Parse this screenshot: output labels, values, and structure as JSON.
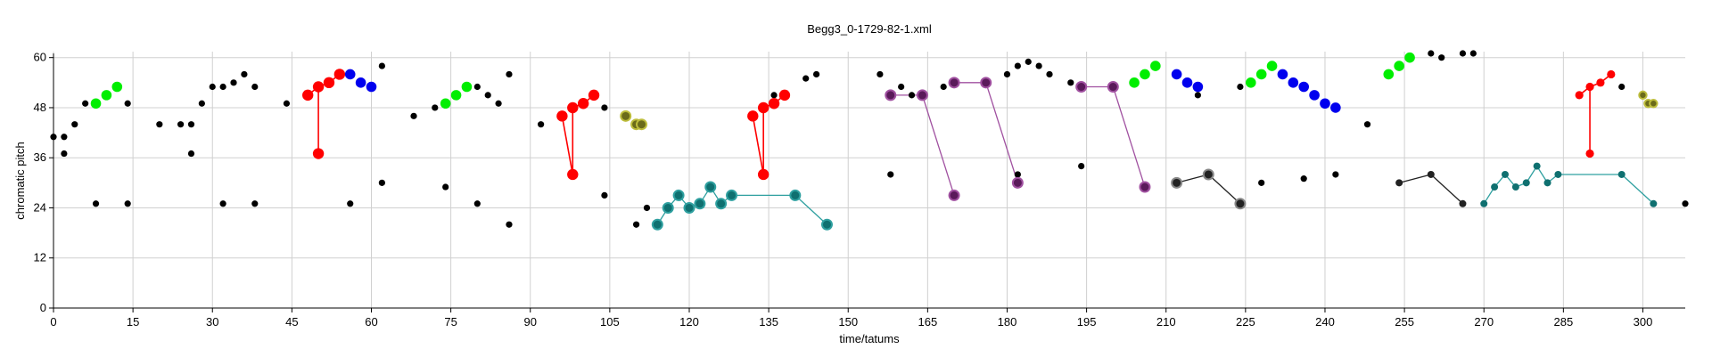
{
  "chart_data": {
    "type": "scatter",
    "title": "Begg3_0-1729-82-1.xml",
    "xlabel": "time/tatums",
    "ylabel": "chromatic pitch",
    "xlim": [
      0,
      308
    ],
    "ylim": [
      0,
      61
    ],
    "xticks": [
      0,
      15,
      30,
      45,
      60,
      75,
      90,
      105,
      120,
      135,
      150,
      165,
      180,
      195,
      210,
      225,
      240,
      255,
      270,
      285,
      300
    ],
    "yticks": [
      0,
      12,
      24,
      36,
      48,
      60
    ],
    "grid": true,
    "colors": {
      "black": "#000000",
      "green": "#00ee00",
      "red": "#ff0000",
      "blue": "#0000ee",
      "olive": "#6b6b1a",
      "olive_ring": "#bdbd3c",
      "teal": "#0f7070",
      "teal_line": "#2fa0a0",
      "purple": "#5a1a5a",
      "purple_line": "#a050a0",
      "dark": "#222222",
      "dark_ring": "#888888",
      "grid": "#d0d0d0"
    },
    "points": [
      [
        0,
        41
      ],
      [
        2,
        41
      ],
      [
        2,
        37
      ],
      [
        4,
        44
      ],
      [
        6,
        49
      ],
      [
        8,
        25
      ],
      [
        14,
        49
      ],
      [
        14,
        25
      ],
      [
        20,
        44
      ],
      [
        24,
        44
      ],
      [
        26,
        44
      ],
      [
        26,
        37
      ],
      [
        28,
        49
      ],
      [
        30,
        53
      ],
      [
        32,
        53
      ],
      [
        32,
        25
      ],
      [
        34,
        54
      ],
      [
        36,
        56
      ],
      [
        38,
        53
      ],
      [
        38,
        25
      ],
      [
        44,
        49
      ],
      [
        56,
        25
      ],
      [
        62,
        58
      ],
      [
        62,
        30
      ],
      [
        68,
        46
      ],
      [
        72,
        48
      ],
      [
        74,
        29
      ],
      [
        80,
        53
      ],
      [
        80,
        25
      ],
      [
        82,
        51
      ],
      [
        84,
        49
      ],
      [
        86,
        56
      ],
      [
        86,
        20
      ],
      [
        92,
        44
      ],
      [
        104,
        48
      ],
      [
        104,
        27
      ],
      [
        110,
        20
      ],
      [
        112,
        24
      ],
      [
        136,
        51
      ],
      [
        142,
        55
      ],
      [
        144,
        56
      ],
      [
        156,
        56
      ],
      [
        158,
        32
      ],
      [
        160,
        53
      ],
      [
        162,
        51
      ],
      [
        168,
        53
      ],
      [
        182,
        32
      ],
      [
        180,
        56
      ],
      [
        182,
        58
      ],
      [
        184,
        59
      ],
      [
        186,
        58
      ],
      [
        188,
        56
      ],
      [
        192,
        54
      ],
      [
        194,
        34
      ],
      [
        212,
        56
      ],
      [
        216,
        51
      ],
      [
        224,
        53
      ],
      [
        228,
        30
      ],
      [
        236,
        31
      ],
      [
        242,
        32
      ],
      [
        248,
        44
      ],
      [
        254,
        30
      ],
      [
        260,
        61
      ],
      [
        262,
        60
      ],
      [
        266,
        61
      ],
      [
        268,
        61
      ],
      [
        272,
        29
      ],
      [
        296,
        53
      ],
      [
        308,
        25
      ]
    ],
    "series": [
      {
        "color": "green",
        "points": [
          [
            8,
            49
          ],
          [
            10,
            51
          ],
          [
            12,
            53
          ]
        ]
      },
      {
        "color": "red",
        "points": [
          [
            48,
            51
          ],
          [
            50,
            53
          ],
          [
            50,
            37
          ],
          [
            52,
            54
          ],
          [
            54,
            56
          ]
        ],
        "edges": [
          [
            0,
            1
          ],
          [
            1,
            2
          ],
          [
            1,
            3
          ],
          [
            3,
            4
          ]
        ]
      },
      {
        "color": "blue",
        "points": [
          [
            56,
            56
          ],
          [
            58,
            54
          ],
          [
            60,
            53
          ]
        ]
      },
      {
        "color": "green",
        "points": [
          [
            74,
            49
          ],
          [
            76,
            51
          ],
          [
            78,
            53
          ]
        ]
      },
      {
        "color": "red",
        "points": [
          [
            96,
            46
          ],
          [
            98,
            32
          ],
          [
            98,
            48
          ],
          [
            100,
            49
          ],
          [
            102,
            51
          ]
        ],
        "edges": [
          [
            0,
            1
          ],
          [
            1,
            2
          ],
          [
            2,
            3
          ],
          [
            3,
            4
          ]
        ]
      },
      {
        "color": "olive",
        "points": [
          [
            108,
            46
          ],
          [
            110,
            44
          ],
          [
            111,
            44
          ]
        ]
      },
      {
        "color": "teal",
        "points": [
          [
            114,
            20
          ],
          [
            116,
            24
          ],
          [
            118,
            27
          ],
          [
            120,
            24
          ],
          [
            122,
            25
          ],
          [
            124,
            29
          ],
          [
            126,
            25
          ],
          [
            128,
            27
          ],
          [
            140,
            27
          ],
          [
            146,
            20
          ]
        ],
        "line": true
      },
      {
        "color": "red",
        "points": [
          [
            132,
            46
          ],
          [
            134,
            32
          ],
          [
            134,
            48
          ],
          [
            136,
            49
          ],
          [
            138,
            51
          ]
        ],
        "edges": [
          [
            0,
            1
          ],
          [
            1,
            2
          ],
          [
            2,
            3
          ],
          [
            3,
            4
          ]
        ]
      },
      {
        "color": "purple",
        "points": [
          [
            158,
            51
          ],
          [
            164,
            51
          ],
          [
            170,
            27
          ]
        ],
        "line": true,
        "big": true
      },
      {
        "color": "purple",
        "points": [
          [
            170,
            54
          ],
          [
            176,
            54
          ],
          [
            182,
            30
          ]
        ],
        "line": true
      },
      {
        "color": "purple",
        "points": [
          [
            194,
            53
          ],
          [
            200,
            53
          ],
          [
            206,
            29
          ]
        ],
        "line": true
      },
      {
        "color": "green",
        "points": [
          [
            204,
            54
          ],
          [
            206,
            56
          ],
          [
            208,
            58
          ]
        ]
      },
      {
        "color": "blue",
        "points": [
          [
            212,
            56
          ],
          [
            214,
            54
          ],
          [
            216,
            53
          ]
        ]
      },
      {
        "color": "dark",
        "points": [
          [
            212,
            30
          ],
          [
            218,
            32
          ],
          [
            224,
            25
          ]
        ],
        "line": true
      },
      {
        "color": "green",
        "points": [
          [
            226,
            54
          ],
          [
            228,
            56
          ],
          [
            230,
            58
          ]
        ]
      },
      {
        "color": "blue",
        "points": [
          [
            232,
            56
          ],
          [
            234,
            54
          ],
          [
            236,
            53
          ],
          [
            238,
            51
          ],
          [
            240,
            49
          ],
          [
            242,
            48
          ]
        ]
      },
      {
        "color": "green",
        "points": [
          [
            252,
            56
          ],
          [
            254,
            58
          ],
          [
            256,
            60
          ]
        ]
      },
      {
        "color": "dark",
        "points": [
          [
            254,
            30
          ],
          [
            260,
            32
          ],
          [
            266,
            25
          ]
        ],
        "line": true,
        "plain": true
      },
      {
        "color": "teal",
        "points": [
          [
            270,
            25
          ],
          [
            272,
            29
          ],
          [
            274,
            32
          ],
          [
            276,
            29
          ],
          [
            278,
            30
          ],
          [
            280,
            34
          ],
          [
            282,
            30
          ],
          [
            284,
            32
          ],
          [
            296,
            32
          ],
          [
            302,
            25
          ]
        ],
        "line": true,
        "plain": true
      },
      {
        "color": "red",
        "points": [
          [
            288,
            51
          ],
          [
            290,
            53
          ],
          [
            290,
            37
          ],
          [
            292,
            54
          ],
          [
            294,
            56
          ]
        ],
        "edges": [
          [
            0,
            1
          ],
          [
            1,
            2
          ],
          [
            1,
            3
          ],
          [
            3,
            4
          ]
        ],
        "small": true
      },
      {
        "color": "olive",
        "points": [
          [
            300,
            51
          ],
          [
            301,
            49
          ],
          [
            302,
            49
          ]
        ],
        "small": true
      }
    ]
  }
}
